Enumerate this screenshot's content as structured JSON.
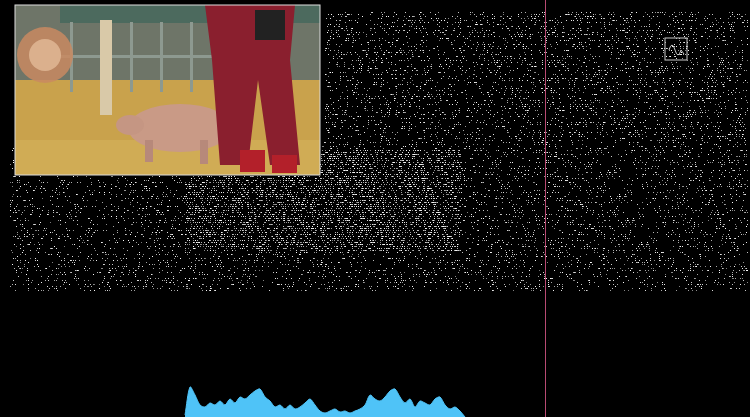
{
  "chart_data": {
    "type": "area",
    "x": [
      185,
      190,
      195,
      200,
      205,
      210,
      215,
      220,
      225,
      230,
      235,
      240,
      245,
      250,
      255,
      260,
      265,
      270,
      275,
      280,
      285,
      290,
      295,
      300,
      305,
      310,
      315,
      320,
      325,
      330,
      335,
      340,
      345,
      350,
      355,
      360,
      365,
      370,
      375,
      380,
      385,
      390,
      395,
      400,
      405,
      410,
      415,
      420,
      425,
      430,
      435,
      440,
      445,
      450,
      455,
      460,
      465
    ],
    "values": [
      2,
      30,
      22,
      12,
      10,
      14,
      12,
      16,
      12,
      18,
      14,
      20,
      18,
      22,
      26,
      28,
      20,
      16,
      10,
      12,
      8,
      12,
      8,
      10,
      14,
      18,
      12,
      6,
      4,
      6,
      8,
      5,
      6,
      4,
      6,
      8,
      12,
      22,
      18,
      16,
      20,
      26,
      28,
      20,
      14,
      18,
      10,
      16,
      14,
      12,
      18,
      20,
      12,
      8,
      10,
      6,
      0
    ],
    "color": "#4fc3f7",
    "xlim": [
      0,
      750
    ],
    "ylim": [
      0,
      417
    ],
    "cursor_x": 545,
    "grid": false,
    "tick_labels": false
  }
}
